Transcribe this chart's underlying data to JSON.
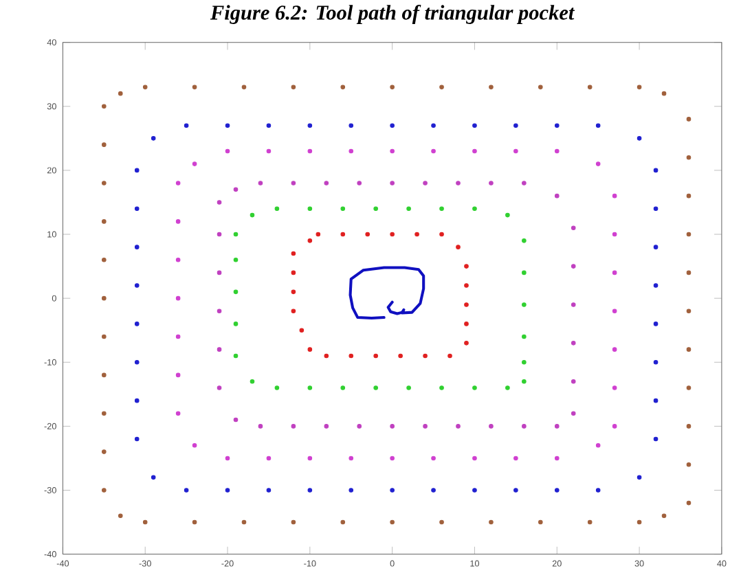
{
  "chart_data": {
    "type": "scatter",
    "title": "Figure 6.2: Tool path of triangular pocket",
    "xlim": [
      -40,
      40
    ],
    "ylim": [
      -40,
      40
    ],
    "xticks": [
      -40,
      -30,
      -20,
      -10,
      0,
      10,
      20,
      30,
      40
    ],
    "yticks": [
      -40,
      -30,
      -20,
      -10,
      0,
      10,
      20,
      30,
      40
    ],
    "grid": false,
    "legend": false,
    "series": [
      {
        "color": "#a0603c",
        "x": [
          -30,
          -24,
          -18,
          -12,
          -6,
          0,
          6,
          12,
          18,
          24,
          30,
          33,
          36,
          36,
          36,
          36,
          36,
          36,
          36,
          36,
          36,
          36,
          36,
          33,
          30,
          24,
          18,
          12,
          6,
          0,
          -6,
          -12,
          -18,
          -24,
          -30,
          -33,
          -35,
          -35,
          -35,
          -35,
          -35,
          -35,
          -35,
          -35,
          -35,
          -35,
          -35,
          -33
        ],
        "values": [
          33,
          33,
          33,
          33,
          33,
          33,
          33,
          33,
          33,
          33,
          33,
          32,
          28,
          22,
          16,
          10,
          4,
          -2,
          -8,
          -14,
          -20,
          -26,
          -32,
          -34,
          -35,
          -35,
          -35,
          -35,
          -35,
          -35,
          -35,
          -35,
          -35,
          -35,
          -35,
          -34,
          -30,
          -24,
          -18,
          -12,
          -6,
          0,
          6,
          12,
          18,
          24,
          30,
          32
        ]
      },
      {
        "color": "#2020d0",
        "x": [
          -25,
          -20,
          -15,
          -10,
          -5,
          0,
          5,
          10,
          15,
          20,
          25,
          30,
          32,
          32,
          32,
          32,
          32,
          32,
          32,
          32,
          30,
          25,
          20,
          15,
          10,
          5,
          0,
          -5,
          -10,
          -15,
          -20,
          -25,
          -29,
          -31,
          -31,
          -31,
          -31,
          -31,
          -31,
          -31,
          -31,
          -29
        ],
        "values": [
          27,
          27,
          27,
          27,
          27,
          27,
          27,
          27,
          27,
          27,
          27,
          25,
          20,
          14,
          8,
          2,
          -4,
          -10,
          -16,
          -22,
          -28,
          -30,
          -30,
          -30,
          -30,
          -30,
          -30,
          -30,
          -30,
          -30,
          -30,
          -30,
          -28,
          -22,
          -16,
          -10,
          -4,
          2,
          8,
          14,
          20,
          25
        ]
      },
      {
        "color": "#d040d0",
        "x": [
          -20,
          -15,
          -10,
          -5,
          0,
          5,
          10,
          15,
          20,
          25,
          27,
          27,
          27,
          27,
          27,
          27,
          27,
          25,
          20,
          15,
          10,
          5,
          0,
          -5,
          -10,
          -15,
          -20,
          -24,
          -26,
          -26,
          -26,
          -26,
          -26,
          -26,
          -26,
          -24
        ],
        "values": [
          23,
          23,
          23,
          23,
          23,
          23,
          23,
          23,
          23,
          21,
          16,
          10,
          4,
          -2,
          -8,
          -14,
          -20,
          -23,
          -25,
          -25,
          -25,
          -25,
          -25,
          -25,
          -25,
          -25,
          -25,
          -23,
          -18,
          -12,
          -6,
          0,
          6,
          12,
          18,
          21
        ]
      },
      {
        "color": "#c040c0",
        "x": [
          -16,
          -12,
          -8,
          -4,
          0,
          4,
          8,
          12,
          16,
          20,
          22,
          22,
          22,
          22,
          22,
          22,
          20,
          16,
          12,
          8,
          4,
          0,
          -4,
          -8,
          -12,
          -16,
          -19,
          -21,
          -21,
          -21,
          -21,
          -21,
          -21,
          -19
        ],
        "values": [
          18,
          18,
          18,
          18,
          18,
          18,
          18,
          18,
          18,
          16,
          11,
          5,
          -1,
          -7,
          -13,
          -18,
          -20,
          -20,
          -20,
          -20,
          -20,
          -20,
          -20,
          -20,
          -20,
          -20,
          -19,
          -14,
          -8,
          -2,
          4,
          10,
          15,
          17
        ]
      },
      {
        "color": "#30d030",
        "x": [
          -14,
          -10,
          -6,
          -2,
          2,
          6,
          10,
          14,
          16,
          16,
          16,
          16,
          16,
          16,
          14,
          10,
          6,
          2,
          -2,
          -6,
          -10,
          -14,
          -17,
          -19,
          -19,
          -19,
          -19,
          -19,
          -17
        ],
        "values": [
          14,
          14,
          14,
          14,
          14,
          14,
          14,
          13,
          9,
          4,
          -1,
          -6,
          -10,
          -13,
          -14,
          -14,
          -14,
          -14,
          -14,
          -14,
          -14,
          -14,
          -13,
          -9,
          -4,
          1,
          6,
          10,
          13
        ]
      },
      {
        "color": "#e02020",
        "x": [
          -9,
          -6,
          -3,
          0,
          3,
          6,
          8,
          9,
          9,
          9,
          9,
          9,
          7,
          4,
          1,
          -2,
          -5,
          -8,
          -10,
          -11,
          -12,
          -12,
          -12,
          -12,
          -10
        ],
        "values": [
          10,
          10,
          10,
          10,
          10,
          10,
          8,
          5,
          2,
          -1,
          -4,
          -7,
          -9,
          -9,
          -9,
          -9,
          -9,
          -9,
          -8,
          -5,
          -2,
          1,
          4,
          7,
          9
        ]
      },
      {
        "type": "line",
        "color": "#1010c0",
        "x": [
          0,
          -0.5,
          -0.2,
          0.6,
          1.2,
          1.4,
          1.2,
          2.4,
          3.4,
          3.8,
          3.8,
          3.2,
          1.5,
          -1,
          -3.5,
          -5,
          -5.1,
          -4.8,
          -4.2,
          -2.5,
          -1
        ],
        "values": [
          -0.6,
          -1.4,
          -2.1,
          -2.4,
          -2.2,
          -1.8,
          -2.3,
          -2.2,
          -0.8,
          1.5,
          3.5,
          4.5,
          4.8,
          4.8,
          4.4,
          3,
          0.5,
          -1.5,
          -3,
          -3.1,
          -3
        ]
      }
    ]
  }
}
